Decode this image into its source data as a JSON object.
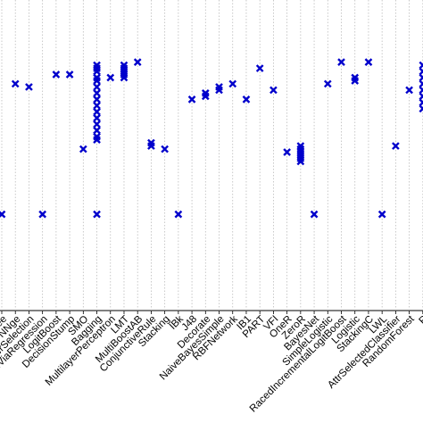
{
  "chart_data": {
    "type": "strip",
    "categories": [
      "Tree",
      "NNge",
      "erSelection",
      "nViaRegression",
      "LogitBoost",
      "DecisionStump",
      "SMO",
      "Bagging",
      "MultilayerPerceptron",
      "LMT",
      "MultiBoostAB",
      "ConjunctiveRule",
      "Stacking",
      "IBk",
      "J48",
      "Decorate",
      "NaiveBayesSimple",
      "RBFNetwork",
      "IB1",
      "PART",
      "VFI",
      "OneR",
      "ZeroR",
      "BayesNet",
      "SimpleLogistic",
      "RacedIncrementalLogitBoost",
      "Logistic",
      "StackingC",
      "LWL",
      "AttrSelectedClassifier",
      "RandomForest",
      "R"
    ],
    "values": [
      [
        31
      ],
      [
        73
      ],
      [
        72
      ],
      [
        31
      ],
      [
        76
      ],
      [
        76
      ],
      [
        52
      ],
      [
        79,
        78,
        77,
        75,
        74,
        72,
        70,
        68,
        66,
        64,
        62,
        60,
        58,
        56,
        55,
        31
      ],
      [
        75
      ],
      [
        79,
        78,
        77,
        76,
        75
      ],
      [
        80
      ],
      [
        54,
        53
      ],
      [
        52
      ],
      [
        31
      ],
      [
        68
      ],
      [
        70,
        69
      ],
      [
        72,
        71
      ],
      [
        73
      ],
      [
        68
      ],
      [
        78
      ],
      [
        71
      ],
      [
        51
      ],
      [
        53,
        52,
        51,
        50,
        49,
        48
      ],
      [
        31
      ],
      [
        73
      ],
      [
        80
      ],
      [
        75,
        74
      ],
      [
        80
      ],
      [
        31
      ],
      [
        53
      ],
      [
        71
      ],
      [
        79,
        77,
        75,
        73,
        71,
        69,
        67,
        65
      ]
    ],
    "color": "#0000cc",
    "ylim": [
      0,
      100
    ]
  }
}
